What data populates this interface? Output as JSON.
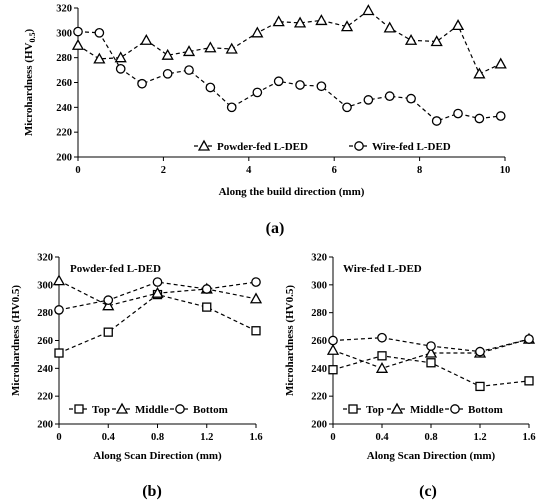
{
  "chart_data": [
    {
      "type": "line",
      "caption": "(a)",
      "xlabel": "Along the build direction (mm)",
      "ylabel_main": "Microhardness (HV",
      "ylabel_sub": "0.5",
      "ylabel_end": ")",
      "xlim": [
        0,
        10
      ],
      "ylim": [
        200,
        320
      ],
      "x_ticks": [
        "0",
        "2",
        "4",
        "6",
        "8",
        "10"
      ],
      "y_ticks": [
        "200",
        "220",
        "240",
        "260",
        "280",
        "300",
        "320"
      ],
      "legend_position": "bottom-center",
      "series": [
        {
          "name": "Powder-fed L-DED",
          "marker": "triangle",
          "x": [
            0,
            0.5,
            1.0,
            1.6,
            2.1,
            2.6,
            3.1,
            3.6,
            4.2,
            4.7,
            5.2,
            5.7,
            6.3,
            6.8,
            7.3,
            7.8,
            8.4,
            8.9,
            9.4,
            9.9
          ],
          "values": [
            290,
            279,
            280,
            294,
            282,
            285,
            288,
            287,
            300,
            309,
            308,
            310,
            305,
            318,
            304,
            294,
            293,
            306,
            267,
            275
          ]
        },
        {
          "name": "Wire-fed L-DED",
          "marker": "circle",
          "x": [
            0,
            0.5,
            1.0,
            1.5,
            2.1,
            2.6,
            3.1,
            3.6,
            4.2,
            4.7,
            5.2,
            5.7,
            6.3,
            6.8,
            7.3,
            7.8,
            8.4,
            8.9,
            9.4,
            9.9
          ],
          "values": [
            301,
            300,
            271,
            259,
            267,
            270,
            256,
            240,
            252,
            261,
            258,
            257,
            240,
            246,
            249,
            247,
            229,
            235,
            231,
            233
          ]
        }
      ]
    },
    {
      "type": "line",
      "caption": "(b)",
      "annotation": "Powder-fed L-DED",
      "xlabel": "Along Scan Direction (mm)",
      "ylabel": "Microhardness (HV0.5)",
      "xlim": [
        0,
        1.6
      ],
      "ylim": [
        200,
        320
      ],
      "x_ticks": [
        "0",
        "0.4",
        "0.8",
        "1.2",
        "1.6"
      ],
      "y_ticks": [
        "200",
        "220",
        "240",
        "260",
        "280",
        "300",
        "320"
      ],
      "legend_position": "bottom-center",
      "series": [
        {
          "name": "Top",
          "marker": "square",
          "x": [
            0,
            0.4,
            0.8,
            1.2,
            1.6
          ],
          "values": [
            251,
            266,
            293,
            284,
            267
          ]
        },
        {
          "name": "Middle",
          "marker": "triangle",
          "x": [
            0,
            0.4,
            0.8,
            1.2,
            1.6
          ],
          "values": [
            303,
            285,
            294,
            297,
            290
          ]
        },
        {
          "name": "Bottom",
          "marker": "circle",
          "x": [
            0,
            0.4,
            0.8,
            1.2,
            1.6
          ],
          "values": [
            282,
            289,
            302,
            297,
            302
          ]
        }
      ]
    },
    {
      "type": "line",
      "caption": "(c)",
      "annotation": "Wire-fed L-DED",
      "xlabel": "Along Scan Direction (mm)",
      "ylabel": "Microhardness (HV0.5)",
      "xlim": [
        0,
        1.6
      ],
      "ylim": [
        200,
        320
      ],
      "x_ticks": [
        "0",
        "0.4",
        "0.8",
        "1.2",
        "1.6"
      ],
      "y_ticks": [
        "200",
        "220",
        "240",
        "260",
        "280",
        "300",
        "320"
      ],
      "legend_position": "bottom-center",
      "series": [
        {
          "name": "Top",
          "marker": "square",
          "x": [
            0,
            0.4,
            0.8,
            1.2,
            1.6
          ],
          "values": [
            239,
            249,
            244,
            227,
            231
          ]
        },
        {
          "name": "Middle",
          "marker": "triangle",
          "x": [
            0,
            0.4,
            0.8,
            1.2,
            1.6
          ],
          "values": [
            253,
            240,
            251,
            251,
            261
          ]
        },
        {
          "name": "Bottom",
          "marker": "circle",
          "x": [
            0,
            0.4,
            0.8,
            1.2,
            1.6
          ],
          "values": [
            260,
            262,
            256,
            252,
            261
          ]
        }
      ]
    }
  ]
}
